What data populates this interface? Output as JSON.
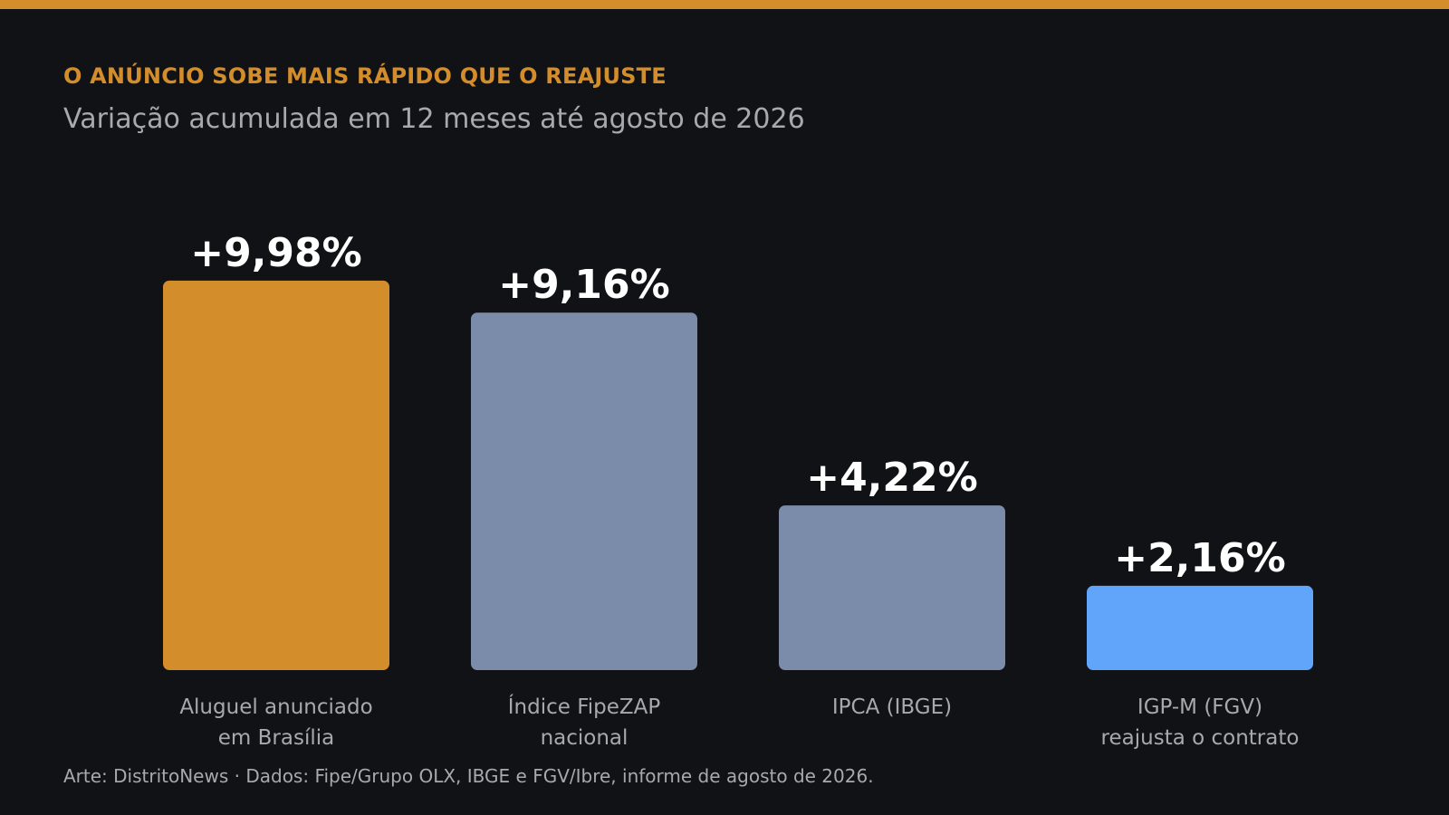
{
  "header": {
    "kicker": "O ANÚNCIO SOBE MAIS RÁPIDO QUE O REAJUSTE",
    "subtitle": "Variação acumulada em 12 meses até agosto de 2026"
  },
  "footer": {
    "source": "Arte: DistritoNews · Dados: Fipe/Grupo OLX, IBGE e FGV/Ibre, informe de agosto de 2026."
  },
  "colors": {
    "background": "#111216",
    "accent": "#D48D2B",
    "neutral": "#7A8CAA",
    "highlight_blue": "#60A5FA",
    "value_text": "#FFFFFF",
    "muted_text": "#A7A9AE"
  },
  "chart_data": {
    "type": "bar",
    "title": "Variação acumulada em 12 meses até agosto de 2026",
    "unit": "%",
    "ylim": [
      0,
      10
    ],
    "grid": false,
    "legend": "none",
    "categories": [
      [
        "Aluguel anunciado",
        "em Brasília"
      ],
      [
        "Índice FipeZAP",
        "nacional"
      ],
      [
        "IPCA (IBGE)"
      ],
      [
        "IGP-M (FGV)",
        "reajusta o contrato"
      ]
    ],
    "values": [
      9.98,
      9.16,
      4.22,
      2.16
    ],
    "value_labels": [
      "+9,98%",
      "+9,16%",
      "+4,22%",
      "+2,16%"
    ],
    "bar_colors": [
      "#D48D2B",
      "#7A8CAA",
      "#7A8CAA",
      "#60A5FA"
    ]
  }
}
